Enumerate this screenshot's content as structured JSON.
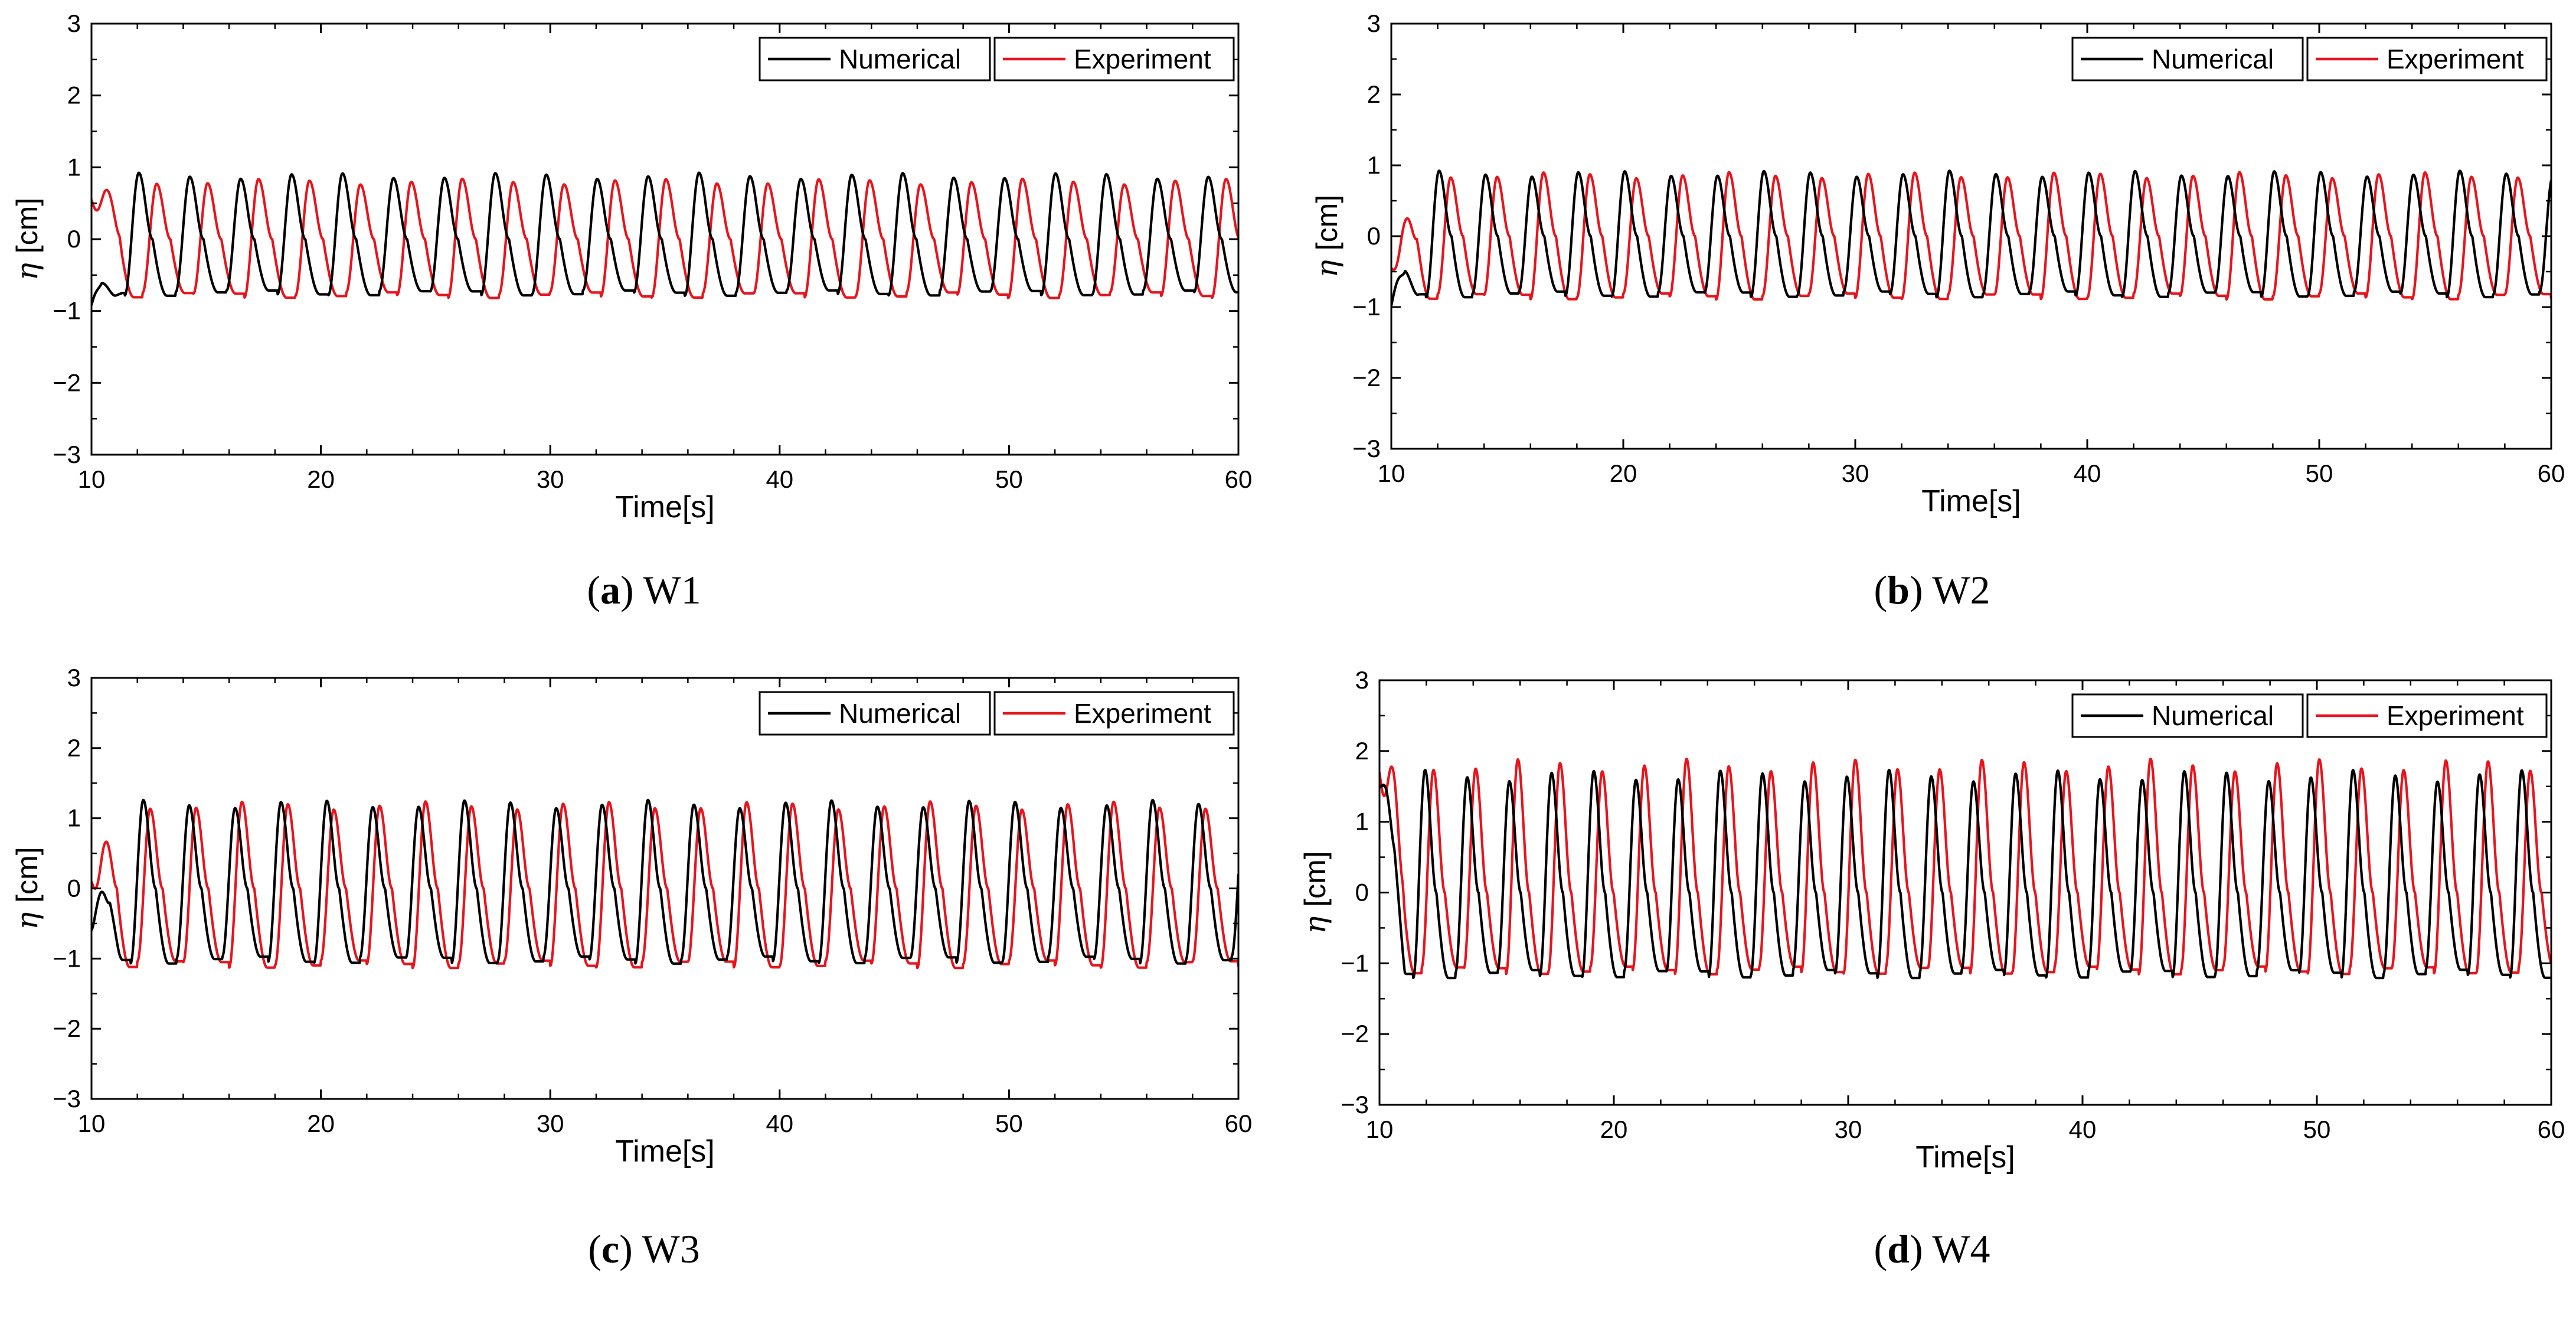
{
  "colors": {
    "numerical": "#000000",
    "experiment": "#e8141c",
    "axis": "#000000",
    "background": "#ffffff"
  },
  "legend": {
    "numerical": "Numerical",
    "experiment": "Experiment"
  },
  "chart_data": [
    {
      "type": "line",
      "panel_letter": "a",
      "panel_name": "W1",
      "xlabel": "Time[s]",
      "ylabel_symbol": "η",
      "ylabel_unit": "[cm]",
      "xlim": [
        10,
        60
      ],
      "ylim": [
        -3,
        3
      ],
      "xticks": [
        10,
        20,
        30,
        40,
        50,
        60
      ],
      "yticks": [
        -3,
        -2,
        -1,
        0,
        1,
        2,
        3
      ],
      "legend_position": "top-right",
      "series": [
        {
          "name": "Numerical",
          "period": 2.22,
          "amplitude_crest": 0.88,
          "amplitude_trough": -0.75,
          "phase": 0.35,
          "start_transient": [
            -0.92,
            -0.85
          ]
        },
        {
          "name": "Experiment",
          "period": 2.22,
          "amplitude_crest": 0.8,
          "amplitude_trough": -0.78,
          "phase": 0.0,
          "start_value": 0.55
        }
      ]
    },
    {
      "type": "line",
      "panel_letter": "b",
      "panel_name": "W2",
      "xlabel": "Time[s]",
      "ylabel_symbol": "η",
      "ylabel_unit": "[cm]",
      "xlim": [
        10,
        60
      ],
      "ylim": [
        -3,
        3
      ],
      "xticks": [
        10,
        20,
        30,
        40,
        50,
        60
      ],
      "yticks": [
        -3,
        -2,
        -1,
        0,
        1,
        2,
        3
      ],
      "legend_position": "top-right",
      "series": [
        {
          "name": "Numerical",
          "period": 2.0,
          "amplitude_crest": 0.88,
          "amplitude_trough": -0.82,
          "phase": 0.25,
          "start_transient": [
            -0.98
          ]
        },
        {
          "name": "Experiment",
          "period": 2.0,
          "amplitude_crest": 0.86,
          "amplitude_trough": -0.85,
          "phase": 0.0,
          "start_value": -0.45
        }
      ]
    },
    {
      "type": "line",
      "panel_letter": "c",
      "panel_name": "W3",
      "xlabel": "Time[s]",
      "ylabel_symbol": "η",
      "ylabel_unit": "[cm]",
      "xlim": [
        10,
        60
      ],
      "ylim": [
        -3,
        3
      ],
      "xticks": [
        10,
        20,
        30,
        40,
        50,
        60
      ],
      "yticks": [
        -3,
        -2,
        -1,
        0,
        1,
        2,
        3
      ],
      "legend_position": "top-right",
      "series": [
        {
          "name": "Numerical",
          "period": 2.0,
          "amplitude_crest": 1.2,
          "amplitude_trough": -1.02,
          "phase": 0.15,
          "start_transient": [
            -0.6
          ]
        },
        {
          "name": "Experiment",
          "period": 2.0,
          "amplitude_crest": 1.18,
          "amplitude_trough": -1.08,
          "phase": 0.0,
          "start_value": 0.1
        }
      ]
    },
    {
      "type": "line",
      "panel_letter": "d",
      "panel_name": "W4",
      "xlabel": "Time[s]",
      "ylabel_symbol": "η",
      "ylabel_unit": "[cm]",
      "xlim": [
        10,
        60
      ],
      "ylim": [
        -3,
        3
      ],
      "xticks": [
        10,
        20,
        30,
        40,
        50,
        60
      ],
      "yticks": [
        -3,
        -2,
        -1,
        0,
        1,
        2,
        3
      ],
      "legend_position": "top-right",
      "series": [
        {
          "name": "Numerical",
          "period": 1.8,
          "amplitude_crest": 1.65,
          "amplitude_trough": -1.15,
          "phase": 0.2,
          "start_transient": [
            1.5
          ]
        },
        {
          "name": "Experiment",
          "period": 1.8,
          "amplitude_crest": 1.8,
          "amplitude_trough": -1.1,
          "phase": 0.0,
          "start_value": 1.7
        }
      ]
    }
  ]
}
